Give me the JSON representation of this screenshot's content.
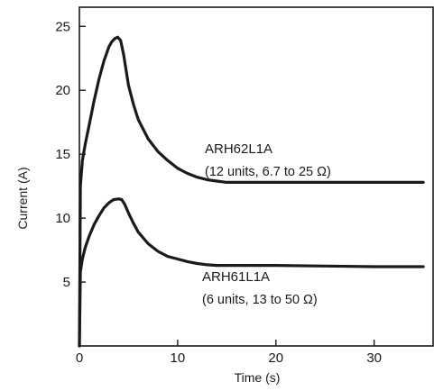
{
  "chart_data": {
    "type": "line",
    "xlabel": "Time (s)",
    "ylabel": "Current (A)",
    "xlim": [
      0,
      36
    ],
    "ylim": [
      0,
      26.5
    ],
    "x_ticks": [
      0,
      10,
      20,
      30
    ],
    "x_tick_labels": [
      "0",
      "10",
      "20",
      "30"
    ],
    "y_ticks": [
      5,
      10,
      15,
      20,
      25
    ],
    "y_tick_labels": [
      "5",
      "10",
      "15",
      "20",
      "25"
    ],
    "grid": false,
    "legend": "none",
    "series": [
      {
        "name": "ARH62L1A",
        "description": "(12 units, 6.7 to 25 Ω)",
        "color": "#1a1a1a",
        "x": [
          0,
          0.1,
          0.3,
          0.6,
          1,
          1.5,
          2,
          2.5,
          3,
          3.3,
          3.6,
          3.9,
          4.2,
          4.5,
          5,
          5.5,
          6,
          7,
          8,
          9,
          10,
          11,
          12,
          13,
          14,
          15,
          20,
          25,
          30,
          35
        ],
        "y": [
          0,
          12.5,
          14.5,
          15.8,
          17.3,
          19.2,
          20.9,
          22.3,
          23.4,
          23.8,
          24.05,
          24.15,
          23.9,
          22.8,
          20.4,
          18.9,
          17.7,
          16.2,
          15.2,
          14.5,
          13.9,
          13.5,
          13.2,
          13.0,
          12.9,
          12.8,
          12.8,
          12.8,
          12.8,
          12.8
        ]
      },
      {
        "name": "ARH61L1A",
        "description": "(6 units, 13 to 50 Ω)",
        "color": "#1a1a1a",
        "x": [
          0,
          0.1,
          0.3,
          0.6,
          1,
          1.5,
          2,
          2.5,
          3,
          3.5,
          4,
          4.3,
          4.6,
          5,
          5.5,
          6,
          7,
          8,
          9,
          10,
          11,
          12,
          13,
          14,
          15,
          20,
          25,
          30,
          35
        ],
        "y": [
          0,
          5.8,
          6.8,
          7.7,
          8.6,
          9.5,
          10.2,
          10.8,
          11.2,
          11.45,
          11.5,
          11.45,
          11.1,
          10.4,
          9.6,
          8.9,
          8.0,
          7.4,
          7.0,
          6.8,
          6.6,
          6.45,
          6.35,
          6.3,
          6.3,
          6.3,
          6.25,
          6.2,
          6.2
        ]
      }
    ]
  }
}
